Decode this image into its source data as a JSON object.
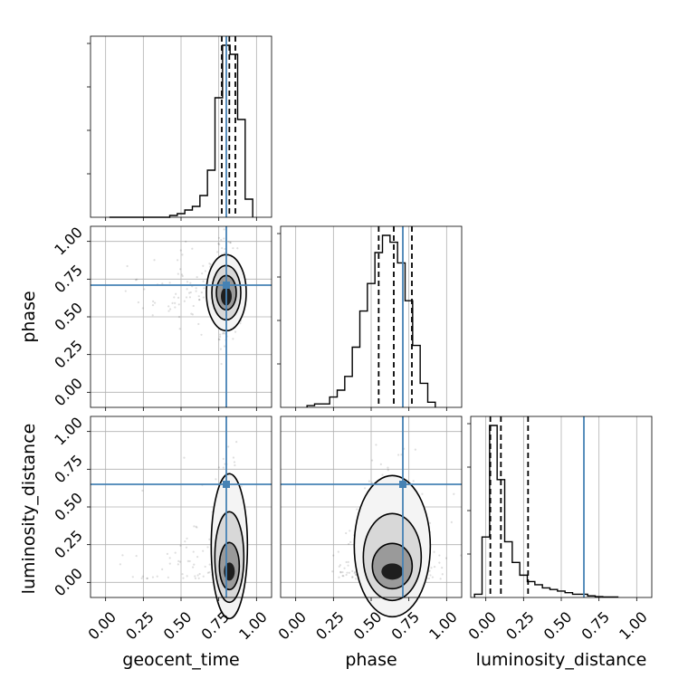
{
  "chart_data": {
    "type": "corner",
    "parameters": [
      "geocent_time",
      "phase",
      "luminosity_distance"
    ],
    "axis_range": [
      -0.1,
      1.1
    ],
    "ticks": [
      0.0,
      0.25,
      0.5,
      0.75,
      1.0
    ],
    "tick_labels": [
      "0.00",
      "0.25",
      "0.50",
      "0.75",
      "1.00"
    ],
    "grid": true,
    "truths": {
      "geocent_time": 0.8,
      "phase": 0.71,
      "luminosity_distance": 0.65
    },
    "truth_color": "#4682b4",
    "quantiles": {
      "geocent_time": [
        0.77,
        0.82,
        0.86
      ],
      "phase": [
        0.55,
        0.65,
        0.77
      ],
      "luminosity_distance": [
        0.03,
        0.1,
        0.28
      ]
    },
    "histograms": {
      "geocent_time": {
        "x": [
          0.05,
          0.1,
          0.15,
          0.2,
          0.25,
          0.3,
          0.35,
          0.4,
          0.45,
          0.5,
          0.55,
          0.6,
          0.65,
          0.7,
          0.75,
          0.8,
          0.85,
          0.9,
          0.95
        ],
        "counts": [
          0,
          0,
          0,
          0,
          0,
          0,
          0,
          0,
          1,
          2,
          4,
          6,
          12,
          26,
          66,
          95,
          90,
          54,
          10
        ]
      },
      "phase": {
        "x": [
          0.1,
          0.15,
          0.2,
          0.25,
          0.3,
          0.35,
          0.4,
          0.45,
          0.5,
          0.55,
          0.6,
          0.65,
          0.7,
          0.75,
          0.8,
          0.85,
          0.9
        ],
        "counts": [
          1,
          2,
          2,
          6,
          10,
          18,
          35,
          56,
          72,
          90,
          100,
          96,
          84,
          62,
          36,
          14,
          3
        ]
      },
      "luminosity_distance": {
        "x": [
          -0.05,
          0.0,
          0.05,
          0.1,
          0.15,
          0.2,
          0.25,
          0.3,
          0.35,
          0.4,
          0.45,
          0.5,
          0.55,
          0.6,
          0.65,
          0.7,
          0.75,
          0.8,
          0.85
        ],
        "counts": [
          2,
          38,
          108,
          74,
          35,
          22,
          14,
          10,
          8,
          6,
          5,
          4,
          3,
          2,
          2,
          1,
          0.5,
          0.3,
          0.3
        ]
      }
    },
    "scatter_panels": [
      {
        "x": "geocent_time",
        "y": "phase",
        "center": [
          0.8,
          0.66
        ],
        "spread": [
          0.035,
          0.14
        ]
      },
      {
        "x": "geocent_time",
        "y": "luminosity_distance",
        "center": [
          0.82,
          0.1
        ],
        "spread": [
          0.035,
          0.12
        ]
      },
      {
        "x": "phase",
        "y": "luminosity_distance",
        "center": [
          0.64,
          0.1
        ],
        "spread": [
          0.14,
          0.12
        ]
      }
    ]
  }
}
